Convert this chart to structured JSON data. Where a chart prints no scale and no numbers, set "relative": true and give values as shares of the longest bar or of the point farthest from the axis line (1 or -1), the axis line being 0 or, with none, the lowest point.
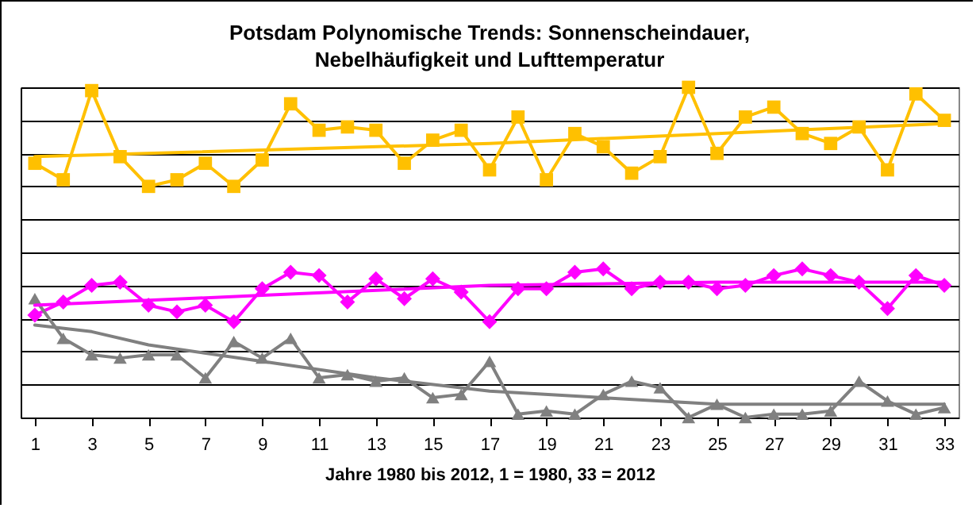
{
  "chart_data": {
    "type": "line",
    "title": "Potsdam Polynomische Trends: Sonnenscheindauer, Nebelhäufigkeit und Lufttemperatur",
    "xlabel": "Jahre 1980 bis 2012, 1 = 1980, 33 = 2012",
    "x": [
      1,
      2,
      3,
      4,
      5,
      6,
      7,
      8,
      9,
      10,
      11,
      12,
      13,
      14,
      15,
      16,
      17,
      18,
      19,
      20,
      21,
      22,
      23,
      24,
      25,
      26,
      27,
      28,
      29,
      30,
      31,
      32,
      33
    ],
    "xlim": [
      0.5,
      33.5
    ],
    "xticks": [
      1,
      3,
      5,
      7,
      9,
      11,
      13,
      15,
      17,
      19,
      21,
      23,
      25,
      27,
      29,
      31,
      33
    ],
    "relative": true,
    "grid": "y",
    "tick_labels": "x",
    "line_style": "solid",
    "series": [
      {
        "color": "#ffc000",
        "marker": "square",
        "values": [
          0.77,
          0.72,
          0.99,
          0.79,
          0.7,
          0.72,
          0.77,
          0.7,
          0.78,
          0.95,
          0.87,
          0.88,
          0.87,
          0.77,
          0.84,
          0.87,
          0.75,
          0.91,
          0.72,
          0.86,
          0.82,
          0.74,
          0.79,
          1,
          0.8,
          0.91,
          0.94,
          0.86,
          0.83,
          0.88,
          0.75,
          0.98,
          0.9
        ]
      },
      {
        "color": "#ff00ff",
        "marker": "diamond",
        "values": [
          0.31,
          0.35,
          0.4,
          0.41,
          0.34,
          0.32,
          0.34,
          0.29,
          0.39,
          0.44,
          0.43,
          0.35,
          0.42,
          0.36,
          0.42,
          0.38,
          0.29,
          0.39,
          0.39,
          0.44,
          0.45,
          0.39,
          0.41,
          0.41,
          0.39,
          0.4,
          0.43,
          0.45,
          0.43,
          0.41,
          0.33,
          0.43,
          0.4
        ]
      },
      {
        "color": "#808080",
        "marker": "triangle",
        "values": [
          0.36,
          0.24,
          0.19,
          0.18,
          0.19,
          0.19,
          0.12,
          0.23,
          0.18,
          0.24,
          0.12,
          0.13,
          0.11,
          0.12,
          0.06,
          0.07,
          0.17,
          0.01,
          0.02,
          0.01,
          0.07,
          0.11,
          0.09,
          0,
          0.04,
          0,
          0.01,
          0.01,
          0.02,
          0.11,
          0.05,
          0.01,
          0.03
        ]
      },
      {
        "type": "line",
        "color": "#ffc000",
        "marker": "none",
        "x": [
          1,
          17,
          33
        ],
        "values": [
          0.79,
          0.83,
          0.89
        ]
      },
      {
        "type": "line",
        "color": "#ff00ff",
        "marker": "none",
        "x": [
          1,
          9,
          17,
          25,
          33
        ],
        "values": [
          0.34,
          0.37,
          0.4,
          0.41,
          0.41
        ]
      },
      {
        "type": "line",
        "color": "#808080",
        "marker": "none",
        "x": [
          1,
          3,
          5,
          9,
          13,
          17,
          21,
          25,
          33
        ],
        "values": [
          0.28,
          0.26,
          0.22,
          0.17,
          0.12,
          0.08,
          0.06,
          0.04,
          0.04
        ]
      }
    ]
  }
}
